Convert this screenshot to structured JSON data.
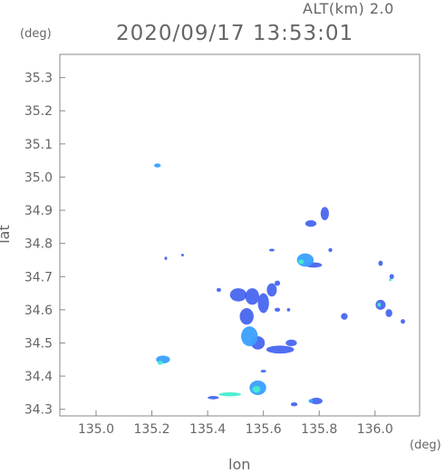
{
  "header": {
    "altitude_text": "ALT(km)  2.0",
    "timestamp": "2020/09/17 13:53:01"
  },
  "chart_data": {
    "type": "heatmap",
    "title": "2020/09/17 13:53:01",
    "xlabel": "lon",
    "ylabel": "lat",
    "x_unit": "(deg)",
    "y_unit": "(deg)",
    "xlim": [
      134.87,
      136.16
    ],
    "ylim": [
      34.28,
      35.37
    ],
    "xticks": [
      135.0,
      135.2,
      135.4,
      135.6,
      135.8,
      136.0
    ],
    "yticks": [
      34.3,
      34.4,
      34.5,
      34.6,
      34.7,
      34.8,
      34.9,
      35.0,
      35.1,
      35.2,
      35.3
    ],
    "xtick_labels": [
      "135.0",
      "135.2",
      "135.4",
      "135.6",
      "135.8",
      "136.0"
    ],
    "ytick_labels": [
      "34.3",
      "34.4",
      "34.5",
      "34.6",
      "34.7",
      "34.8",
      "34.9",
      "35.0",
      "35.1",
      "35.2",
      "35.3"
    ],
    "grid": false,
    "colors": {
      "low": "#3355ee",
      "mid": "#3aa0ff",
      "high": "#44eecc",
      "axis": "#888888"
    },
    "echoes": [
      {
        "lon": 135.22,
        "lat": 35.035,
        "rx": 0.012,
        "ry": 0.006,
        "level": "mid"
      },
      {
        "lon": 135.25,
        "lat": 34.755,
        "rx": 0.005,
        "ry": 0.005,
        "level": "low"
      },
      {
        "lon": 135.31,
        "lat": 34.765,
        "rx": 0.004,
        "ry": 0.004,
        "level": "low"
      },
      {
        "lon": 135.24,
        "lat": 34.45,
        "rx": 0.025,
        "ry": 0.012,
        "level": "mid"
      },
      {
        "lon": 135.23,
        "lat": 34.44,
        "rx": 0.01,
        "ry": 0.006,
        "level": "high"
      },
      {
        "lon": 135.44,
        "lat": 34.66,
        "rx": 0.008,
        "ry": 0.006,
        "level": "low"
      },
      {
        "lon": 135.51,
        "lat": 34.645,
        "rx": 0.03,
        "ry": 0.02,
        "level": "low"
      },
      {
        "lon": 135.56,
        "lat": 34.64,
        "rx": 0.025,
        "ry": 0.025,
        "level": "low"
      },
      {
        "lon": 135.6,
        "lat": 34.62,
        "rx": 0.02,
        "ry": 0.03,
        "level": "low"
      },
      {
        "lon": 135.63,
        "lat": 34.66,
        "rx": 0.018,
        "ry": 0.02,
        "level": "low"
      },
      {
        "lon": 135.65,
        "lat": 34.68,
        "rx": 0.01,
        "ry": 0.008,
        "level": "low"
      },
      {
        "lon": 135.54,
        "lat": 34.58,
        "rx": 0.025,
        "ry": 0.025,
        "level": "low"
      },
      {
        "lon": 135.55,
        "lat": 34.52,
        "rx": 0.03,
        "ry": 0.03,
        "level": "mid"
      },
      {
        "lon": 135.58,
        "lat": 34.5,
        "rx": 0.025,
        "ry": 0.02,
        "level": "low"
      },
      {
        "lon": 135.66,
        "lat": 34.48,
        "rx": 0.05,
        "ry": 0.012,
        "level": "low"
      },
      {
        "lon": 135.7,
        "lat": 34.5,
        "rx": 0.02,
        "ry": 0.01,
        "level": "low"
      },
      {
        "lon": 135.65,
        "lat": 34.6,
        "rx": 0.01,
        "ry": 0.006,
        "level": "low"
      },
      {
        "lon": 135.69,
        "lat": 34.6,
        "rx": 0.006,
        "ry": 0.005,
        "level": "low"
      },
      {
        "lon": 135.75,
        "lat": 34.75,
        "rx": 0.03,
        "ry": 0.02,
        "level": "mid"
      },
      {
        "lon": 135.735,
        "lat": 34.745,
        "rx": 0.01,
        "ry": 0.007,
        "level": "high"
      },
      {
        "lon": 135.78,
        "lat": 34.735,
        "rx": 0.03,
        "ry": 0.008,
        "level": "low"
      },
      {
        "lon": 135.77,
        "lat": 34.86,
        "rx": 0.02,
        "ry": 0.01,
        "level": "low"
      },
      {
        "lon": 135.82,
        "lat": 34.89,
        "rx": 0.015,
        "ry": 0.02,
        "level": "low"
      },
      {
        "lon": 135.84,
        "lat": 34.78,
        "rx": 0.007,
        "ry": 0.006,
        "level": "low"
      },
      {
        "lon": 135.63,
        "lat": 34.78,
        "rx": 0.01,
        "ry": 0.004,
        "level": "low"
      },
      {
        "lon": 135.89,
        "lat": 34.58,
        "rx": 0.012,
        "ry": 0.01,
        "level": "low"
      },
      {
        "lon": 136.02,
        "lat": 34.74,
        "rx": 0.008,
        "ry": 0.008,
        "level": "low"
      },
      {
        "lon": 136.06,
        "lat": 34.7,
        "rx": 0.008,
        "ry": 0.008,
        "level": "low"
      },
      {
        "lon": 136.055,
        "lat": 34.69,
        "rx": 0.004,
        "ry": 0.004,
        "level": "high"
      },
      {
        "lon": 136.02,
        "lat": 34.615,
        "rx": 0.018,
        "ry": 0.015,
        "level": "low"
      },
      {
        "lon": 136.015,
        "lat": 34.615,
        "rx": 0.006,
        "ry": 0.006,
        "level": "high"
      },
      {
        "lon": 136.05,
        "lat": 34.59,
        "rx": 0.012,
        "ry": 0.012,
        "level": "low"
      },
      {
        "lon": 136.1,
        "lat": 34.565,
        "rx": 0.008,
        "ry": 0.007,
        "level": "low"
      },
      {
        "lon": 135.58,
        "lat": 34.365,
        "rx": 0.03,
        "ry": 0.022,
        "level": "mid"
      },
      {
        "lon": 135.575,
        "lat": 34.36,
        "rx": 0.014,
        "ry": 0.01,
        "level": "high"
      },
      {
        "lon": 135.48,
        "lat": 34.345,
        "rx": 0.04,
        "ry": 0.006,
        "level": "high"
      },
      {
        "lon": 135.42,
        "lat": 34.335,
        "rx": 0.02,
        "ry": 0.005,
        "level": "low"
      },
      {
        "lon": 135.6,
        "lat": 34.415,
        "rx": 0.01,
        "ry": 0.004,
        "level": "low"
      },
      {
        "lon": 135.79,
        "lat": 34.325,
        "rx": 0.022,
        "ry": 0.01,
        "level": "low"
      },
      {
        "lon": 135.71,
        "lat": 34.315,
        "rx": 0.012,
        "ry": 0.006,
        "level": "low"
      },
      {
        "lon": 135.77,
        "lat": 34.325,
        "rx": 0.008,
        "ry": 0.006,
        "level": "mid"
      }
    ]
  }
}
